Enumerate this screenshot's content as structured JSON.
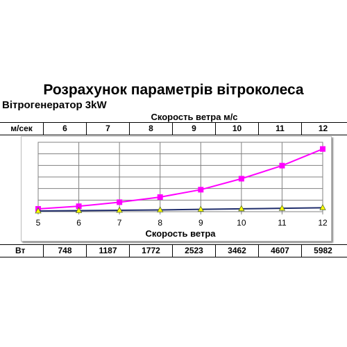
{
  "title": "Розрахунок параметрів вітроколеса",
  "subtitle": "Вітрогенератор 3kW",
  "speed_header": "Скорость ветра м/с",
  "row_top_label": "м/сек",
  "row_bottom_label": "Вт",
  "speeds": [
    "6",
    "7",
    "8",
    "9",
    "10",
    "11",
    "12"
  ],
  "watts": [
    "748",
    "1187",
    "1772",
    "2523",
    "3462",
    "4607",
    "5982"
  ],
  "chart_data": {
    "type": "line",
    "xlabel": "Скорость ветра",
    "ylabel": "",
    "xlim": [
      5,
      12
    ],
    "ylim": [
      0,
      6000
    ],
    "x_ticks": [
      "5",
      "6",
      "7",
      "8",
      "9",
      "10",
      "11",
      "12"
    ],
    "y_gridlines": [
      1000,
      2000,
      3000,
      4000,
      5000,
      6000
    ],
    "grid": true,
    "series": [
      {
        "x": [
          5,
          6,
          7,
          8,
          9,
          10,
          11,
          12
        ],
        "values": [
          240,
          470,
          820,
          1260,
          1900,
          2850,
          3980,
          5420
        ],
        "color": "#ff00ff",
        "marker": "square"
      },
      {
        "x": [
          5,
          6,
          7,
          8,
          9,
          10,
          11,
          12
        ],
        "values": [
          60,
          90,
          120,
          150,
          200,
          250,
          290,
          340
        ],
        "color": "#1f2d6b",
        "marker": "triangle",
        "marker_color": "#ffff00"
      }
    ]
  }
}
